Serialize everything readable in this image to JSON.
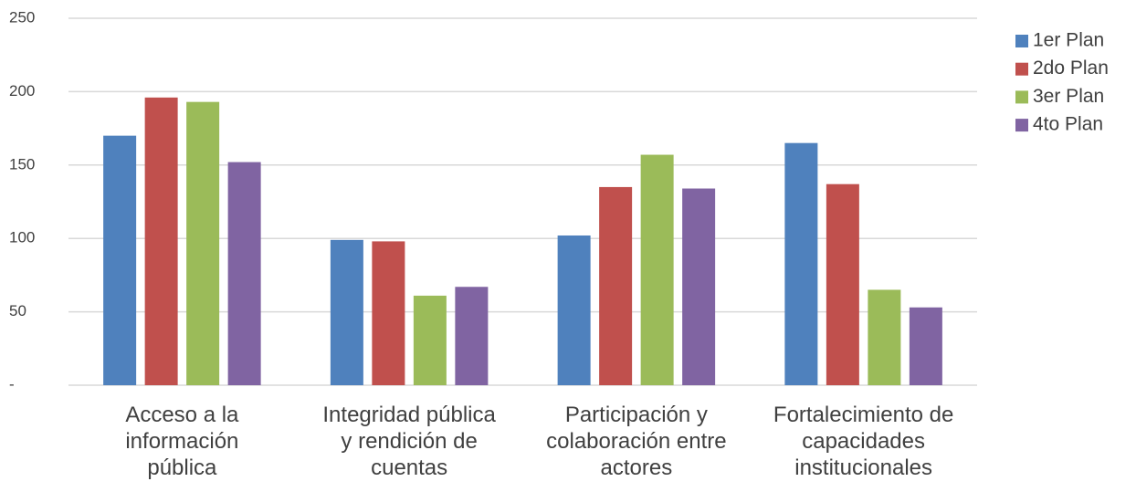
{
  "chart_data": {
    "type": "bar",
    "categories": [
      "Acceso a la\ninformación\npública",
      "Integridad pública\ny rendición de\ncuentas",
      "Participación y\ncolaboración entre\nactores",
      "Fortalecimiento de\ncapacidades\ninstitucionales"
    ],
    "series": [
      {
        "name": "1er Plan",
        "color": "#4f81bd",
        "values": [
          170,
          99,
          102,
          165
        ]
      },
      {
        "name": "2do Plan",
        "color": "#c0504d",
        "values": [
          196,
          98,
          135,
          137
        ]
      },
      {
        "name": "3er Plan",
        "color": "#9bbb59",
        "values": [
          193,
          61,
          157,
          65
        ]
      },
      {
        "name": "4to Plan",
        "color": "#8064a2",
        "values": [
          152,
          67,
          134,
          53
        ]
      }
    ],
    "ylim": [
      0,
      250
    ],
    "yticks": [
      {
        "value": 0,
        "label": "-"
      },
      50,
      100,
      150,
      200,
      250
    ],
    "grid": true,
    "legend": "right"
  }
}
